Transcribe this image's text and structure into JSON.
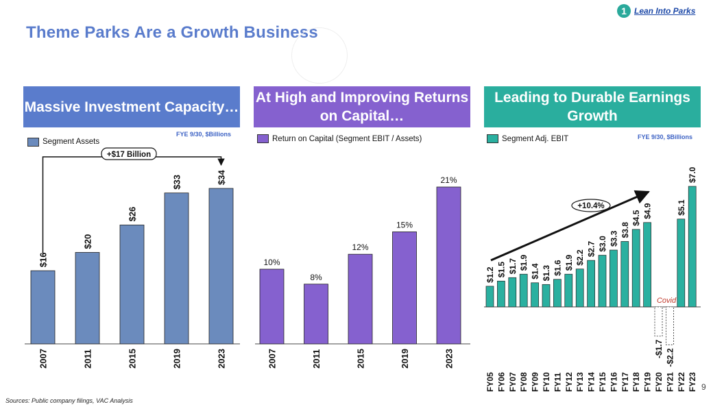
{
  "header": {
    "title": "Theme Parks Are a Growth Business",
    "section_number": "1",
    "section_label": "Lean Into Parks"
  },
  "panels": [
    {
      "heading": "Massive Investment Capacity…",
      "note": "FYE 9/30, $Billions",
      "legend": "Segment Assets"
    },
    {
      "heading": "At High and Improving Returns on Capital…",
      "note": "",
      "legend": "Return on Capital (Segment EBIT / Assets)"
    },
    {
      "heading": "Leading to Durable Earnings Growth",
      "note": "FYE 9/30, $Billions",
      "legend": "Segment Adj. EBIT"
    }
  ],
  "footer": {
    "sources": "Sources: Public company filings, VAC Analysis",
    "page_number": "9"
  },
  "colors": {
    "title": "#5a7ccc",
    "assets": "#6b8bbd",
    "roc": "#8561cf",
    "ebit": "#2ab0a0",
    "covid": "#c0392b"
  },
  "chart_data": [
    {
      "type": "bar",
      "title": "Massive Investment Capacity…",
      "categories": [
        "2007",
        "2011",
        "2015",
        "2019",
        "2023"
      ],
      "series": [
        {
          "name": "Segment Assets",
          "values": [
            16,
            20,
            26,
            33,
            34
          ]
        }
      ],
      "labels": [
        "$16",
        "$20",
        "$26",
        "$33",
        "$34"
      ],
      "annotation": "+$17 Billion",
      "ylim": [
        0,
        40
      ]
    },
    {
      "type": "bar",
      "title": "At High and Improving Returns on Capital…",
      "categories": [
        "2007",
        "2011",
        "2015",
        "2019",
        "2023"
      ],
      "series": [
        {
          "name": "Return on Capital (Segment EBIT / Assets)",
          "values": [
            10,
            8,
            12,
            15,
            21
          ]
        }
      ],
      "labels": [
        "10%",
        "8%",
        "12%",
        "15%",
        "21%"
      ],
      "ylim": [
        0,
        25
      ]
    },
    {
      "type": "bar",
      "title": "Leading to Durable Earnings Growth",
      "categories": [
        "FY05",
        "FY06",
        "FY07",
        "FY08",
        "FY09",
        "FY10",
        "FY11",
        "FY12",
        "FY13",
        "FY14",
        "FY15",
        "FY16",
        "FY17",
        "FY18",
        "FY19",
        "FY20",
        "FY21",
        "FY22",
        "FY23"
      ],
      "series": [
        {
          "name": "Segment Adj. EBIT",
          "values": [
            1.2,
            1.5,
            1.7,
            1.9,
            1.4,
            1.3,
            1.6,
            1.9,
            2.2,
            2.7,
            3.0,
            3.3,
            3.8,
            4.5,
            4.9,
            -1.7,
            -2.2,
            5.1,
            7.0
          ]
        }
      ],
      "labels": [
        "$1.2",
        "$1.5",
        "$1.7",
        "$1.9",
        "$1.4",
        "$1.3",
        "$1.6",
        "$1.9",
        "$2.2",
        "$2.7",
        "$3.0",
        "$3.3",
        "$3.8",
        "$4.5",
        "$4.9",
        "-$1.7",
        "-$2.2",
        "$5.1",
        "$7.0"
      ],
      "annotations": [
        "+10.4%",
        "Covid"
      ],
      "ylim": [
        -2.5,
        7.5
      ]
    }
  ]
}
